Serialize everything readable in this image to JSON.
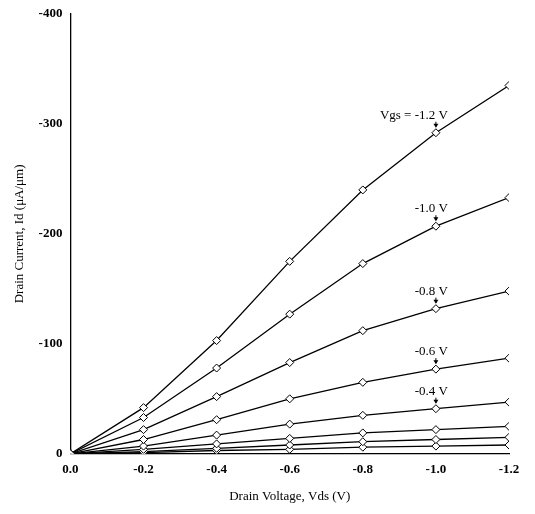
{
  "chart_data": {
    "type": "line",
    "x_label": "Drain Voltage, Vds (V)",
    "y_label": "Drain Current, Id (μA/μm)",
    "x": [
      0,
      -0.2,
      -0.4,
      -0.6,
      -0.8,
      -1.0,
      -1.2
    ],
    "series": [
      {
        "name": "Vgs = -1.2 V",
        "color": "#000000",
        "values": [
          0,
          -42,
          -103,
          -175,
          -240,
          -292,
          -335
        ]
      },
      {
        "name": "-1.0 V",
        "color": "#000000",
        "values": [
          0,
          -33,
          -78,
          -127,
          -173,
          -207,
          -233
        ]
      },
      {
        "name": "-0.8 V",
        "color": "#000000",
        "values": [
          0,
          -22,
          -52,
          -83,
          -112,
          -132,
          -148
        ]
      },
      {
        "name": "-0.6 V",
        "color": "#000000",
        "values": [
          0,
          -13,
          -31,
          -50,
          -65,
          -77,
          -87
        ]
      },
      {
        "name": "-0.4 V",
        "color": "#000000",
        "values": [
          0,
          -7,
          -17,
          -27,
          -35,
          -41,
          -47
        ]
      },
      {
        "name": null,
        "color": "#000000",
        "values": [
          0,
          -4,
          -9,
          -14,
          -19,
          -22,
          -25
        ]
      },
      {
        "name": null,
        "color": "#000000",
        "values": [
          0,
          -2,
          -5,
          -8,
          -11,
          -13,
          -15
        ]
      },
      {
        "name": null,
        "color": "#000000",
        "values": [
          0,
          -1,
          -3,
          -4,
          -6,
          -7,
          -8
        ]
      }
    ],
    "xlim": [
      0,
      -1.2
    ],
    "xticks": [
      {
        "value": 0,
        "label": "0.0"
      },
      {
        "value": -0.2,
        "label": "-0.2"
      },
      {
        "value": -0.4,
        "label": "-0.4"
      },
      {
        "value": -0.6,
        "label": "-0.6"
      },
      {
        "value": -0.8,
        "label": "-0.8"
      },
      {
        "value": -1.0,
        "label": "-1.0"
      },
      {
        "value": -1.2,
        "label": "-1.2"
      }
    ],
    "ylim": [
      0,
      -400
    ],
    "yticks": [
      0,
      -100,
      -200,
      -300,
      -400
    ],
    "marker": "diamond",
    "line_style": "solid",
    "grid": false
  }
}
